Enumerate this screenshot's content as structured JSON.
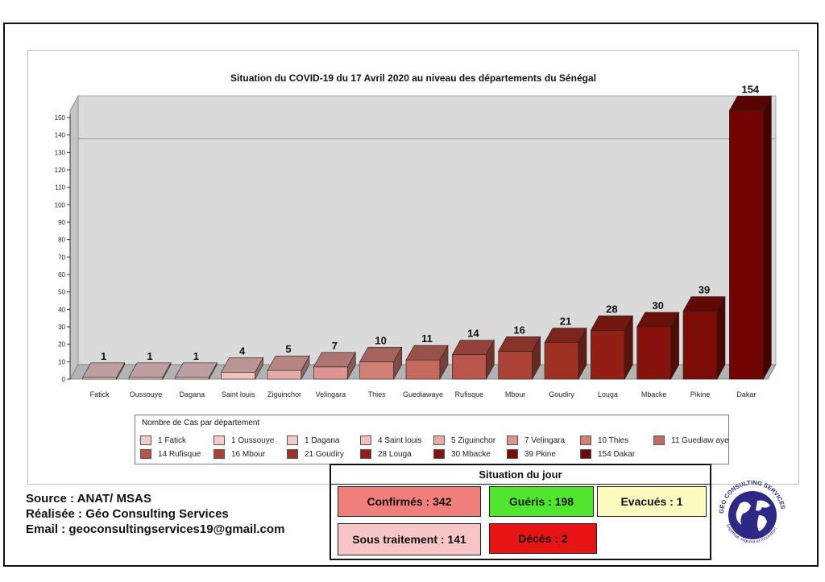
{
  "chart_data": {
    "type": "bar",
    "title": "Situation du COVID-19 du 17 Avril 2020 au niveau des départements du Sénégal",
    "categories": [
      "Fatick",
      "Oussouye",
      "Dagana",
      "Saint louis",
      "Ziguinchor",
      "Velingara",
      "Thies",
      "Guediawaye",
      "Rufisque",
      "Mbour",
      "Goudiry",
      "Louga",
      "Mbacke",
      "Pikine",
      "Dakar"
    ],
    "values": [
      1,
      1,
      1,
      4,
      5,
      7,
      10,
      11,
      14,
      16,
      21,
      28,
      30,
      39,
      154
    ],
    "ylim": [
      0,
      150
    ],
    "yticks": [
      "0",
      "10",
      "20",
      "30",
      "40",
      "50",
      "60",
      "70",
      "80",
      "90",
      "100",
      "110",
      "120",
      "130",
      "140",
      "150"
    ],
    "legend_title": "Nombre de Cas par département",
    "legend_labels": [
      "1 Fatick",
      "1 Oussouye",
      "1 Dagana",
      "4 Saint louis",
      "5 Ziguinchor",
      "7 Velingara",
      "10 Thies",
      "11 Guediaw aye",
      "14 Rufisque",
      "16 Mbour",
      "21 Goudiry",
      "28 Louga",
      "30 Mbacke",
      "39 Pkine",
      "154 Dakar"
    ],
    "colors": [
      "#f2cccc",
      "#f2cccc",
      "#f2cccc",
      "#efc0bd",
      "#e8aaa6",
      "#de958f",
      "#d27f76",
      "#c66a60",
      "#b9554a",
      "#ac4336",
      "#9e3024",
      "#921f15",
      "#86140c",
      "#7c0c06",
      "#720404"
    ]
  },
  "footer": {
    "source": "Source : ANAT/ MSAS",
    "realisee": "Réalisée : Géo Consulting Services",
    "email": "Email : geoconsultingservices19@gmail.com"
  },
  "situation": {
    "title": "Situation du jour",
    "confirmes": "Confirmés : 342",
    "gueris": "Guéris : 198",
    "evacues": "Evacués : 1",
    "sous_traitement": "Sous traitement : 141",
    "deces": "Décés : 2",
    "colors": {
      "confirmes": "#f07f7c",
      "gueris": "#4fe62b",
      "evacues": "#fbfbc0",
      "sous_traitement": "#f8c6c6",
      "deces": "#e81414"
    }
  },
  "logo": {
    "text": "GÉO CONSULTING SERVICES",
    "tagline": "Expertise, Rigueur et Innovation"
  }
}
